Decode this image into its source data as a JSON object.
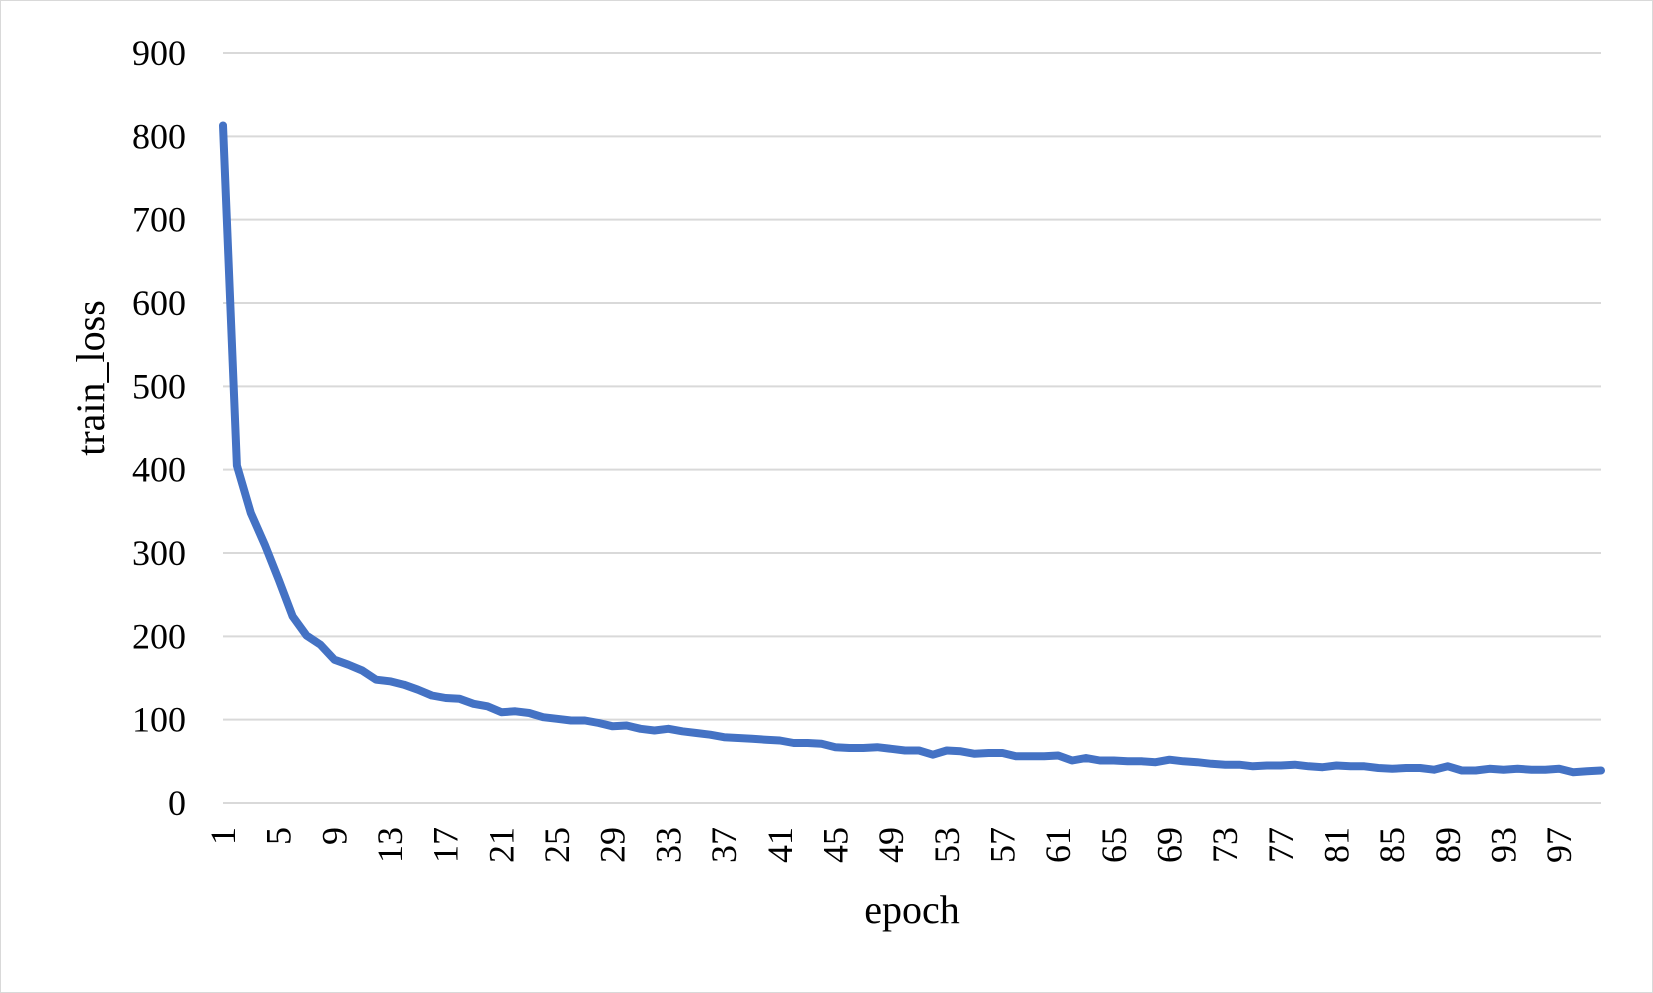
{
  "chart_data": {
    "type": "line",
    "title": "",
    "xlabel": "epoch",
    "ylabel": "train_loss",
    "ylim": [
      0,
      900
    ],
    "yticks": [
      0,
      100,
      200,
      300,
      400,
      500,
      600,
      700,
      800,
      900
    ],
    "x_range": [
      1,
      100
    ],
    "xtick_labels": [
      "1",
      "5",
      "9",
      "13",
      "17",
      "21",
      "25",
      "29",
      "33",
      "37",
      "41",
      "45",
      "49",
      "53",
      "57",
      "61",
      "65",
      "69",
      "73",
      "77",
      "81",
      "85",
      "89",
      "93",
      "97"
    ],
    "grid": true,
    "legend": "none",
    "series_color": "#4472c4",
    "series": [
      {
        "values": [
          813,
          405,
          348,
          310,
          268,
          224,
          201,
          190,
          172,
          166,
          159,
          148,
          146,
          142,
          136,
          129,
          126,
          125,
          119,
          116,
          109,
          110,
          108,
          103,
          101,
          99,
          99,
          96,
          92,
          93,
          89,
          87,
          89,
          86,
          84,
          82,
          79,
          78,
          77,
          76,
          75,
          72,
          72,
          71,
          67,
          66,
          66,
          67,
          65,
          63,
          63,
          58,
          63,
          62,
          59,
          60,
          60,
          56,
          56,
          56,
          57,
          51,
          54,
          51,
          51,
          50,
          50,
          49,
          52,
          50,
          49,
          47,
          46,
          46,
          44,
          45,
          45,
          46,
          44,
          43,
          45,
          44,
          44,
          42,
          41,
          42,
          42,
          40,
          44,
          39,
          39,
          41,
          40,
          41,
          40,
          40,
          41,
          37,
          38,
          39
        ]
      }
    ]
  }
}
